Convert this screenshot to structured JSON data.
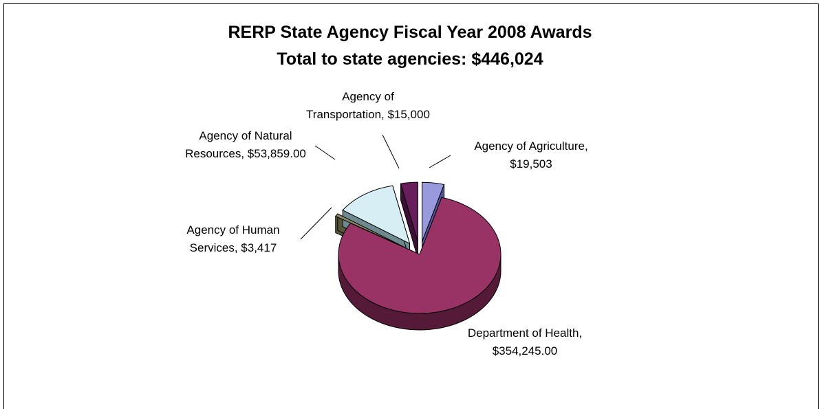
{
  "chart_data": {
    "type": "pie",
    "title": "RERP State Agency Fiscal Year 2008 Awards",
    "subtitle": "Total to state agencies: $446,024",
    "slices": [
      {
        "name": "Agency of Agriculture",
        "value": 19503,
        "label_lines": [
          "Agency of Agriculture,",
          "$19,503"
        ],
        "color": "#9999dd",
        "side_color": "#55559a",
        "explode": true
      },
      {
        "name": "Department of Health",
        "value": 354245,
        "label_lines": [
          "Department of Health,",
          "$354,245.00"
        ],
        "color": "#993366",
        "side_color": "#551a38",
        "explode": false
      },
      {
        "name": "Agency of Human Services",
        "value": 3417,
        "label_lines": [
          "Agency of Human",
          "Services,  $3,417"
        ],
        "color": "#8a8a66",
        "side_color": "#55553a",
        "explode": true
      },
      {
        "name": "Agency of Natural Resources",
        "value": 53859,
        "label_lines": [
          "Agency of Natural",
          "Resources,  $53,859.00"
        ],
        "color": "#d6eef4",
        "side_color": "#6e8a8f",
        "explode": true
      },
      {
        "name": "Agency of Transportation",
        "value": 15000,
        "label_lines": [
          "Agency of",
          "Transportation,  $15,000"
        ],
        "color": "#661f5a",
        "side_color": "#3d0f35",
        "explode": true
      }
    ]
  }
}
